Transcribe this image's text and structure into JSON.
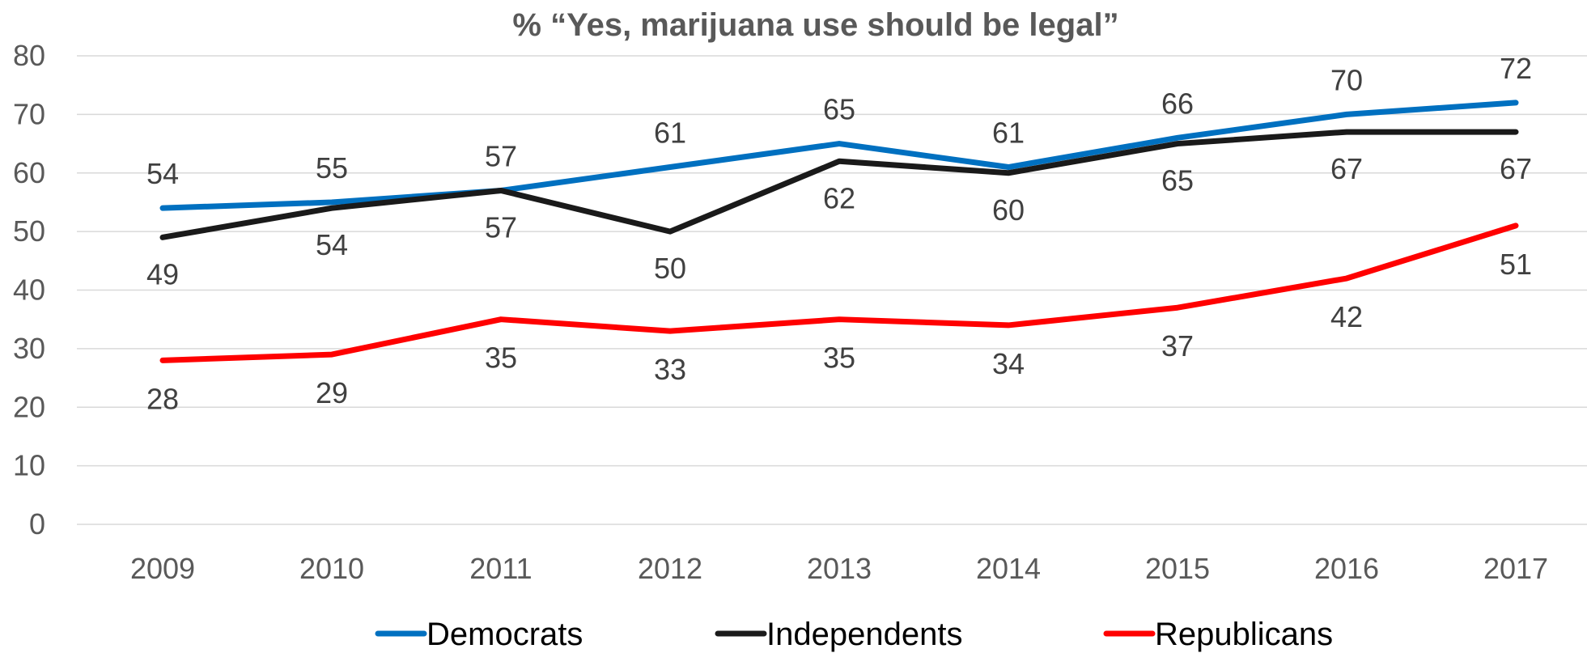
{
  "chart_data": {
    "type": "line",
    "title": "% “Yes, marijuana use should be legal”",
    "xlabel": "",
    "ylabel": "",
    "categories": [
      "2009",
      "2010",
      "2011",
      "2012",
      "2013",
      "2014",
      "2015",
      "2016",
      "2017"
    ],
    "ylim": [
      0,
      80
    ],
    "yticks": [
      0,
      10,
      20,
      30,
      40,
      50,
      60,
      70,
      80
    ],
    "grid": true,
    "legend_position": "bottom",
    "series": [
      {
        "name": "Democrats",
        "color": "#0070C0",
        "values": [
          54,
          55,
          57,
          61,
          65,
          61,
          66,
          70,
          72
        ]
      },
      {
        "name": "Independents",
        "color": "#1A1A1A",
        "values": [
          49,
          54,
          57,
          50,
          62,
          60,
          65,
          67,
          67
        ]
      },
      {
        "name": "Republicans",
        "color": "#FF0000",
        "values": [
          28,
          29,
          35,
          33,
          35,
          34,
          37,
          42,
          51
        ]
      }
    ]
  }
}
